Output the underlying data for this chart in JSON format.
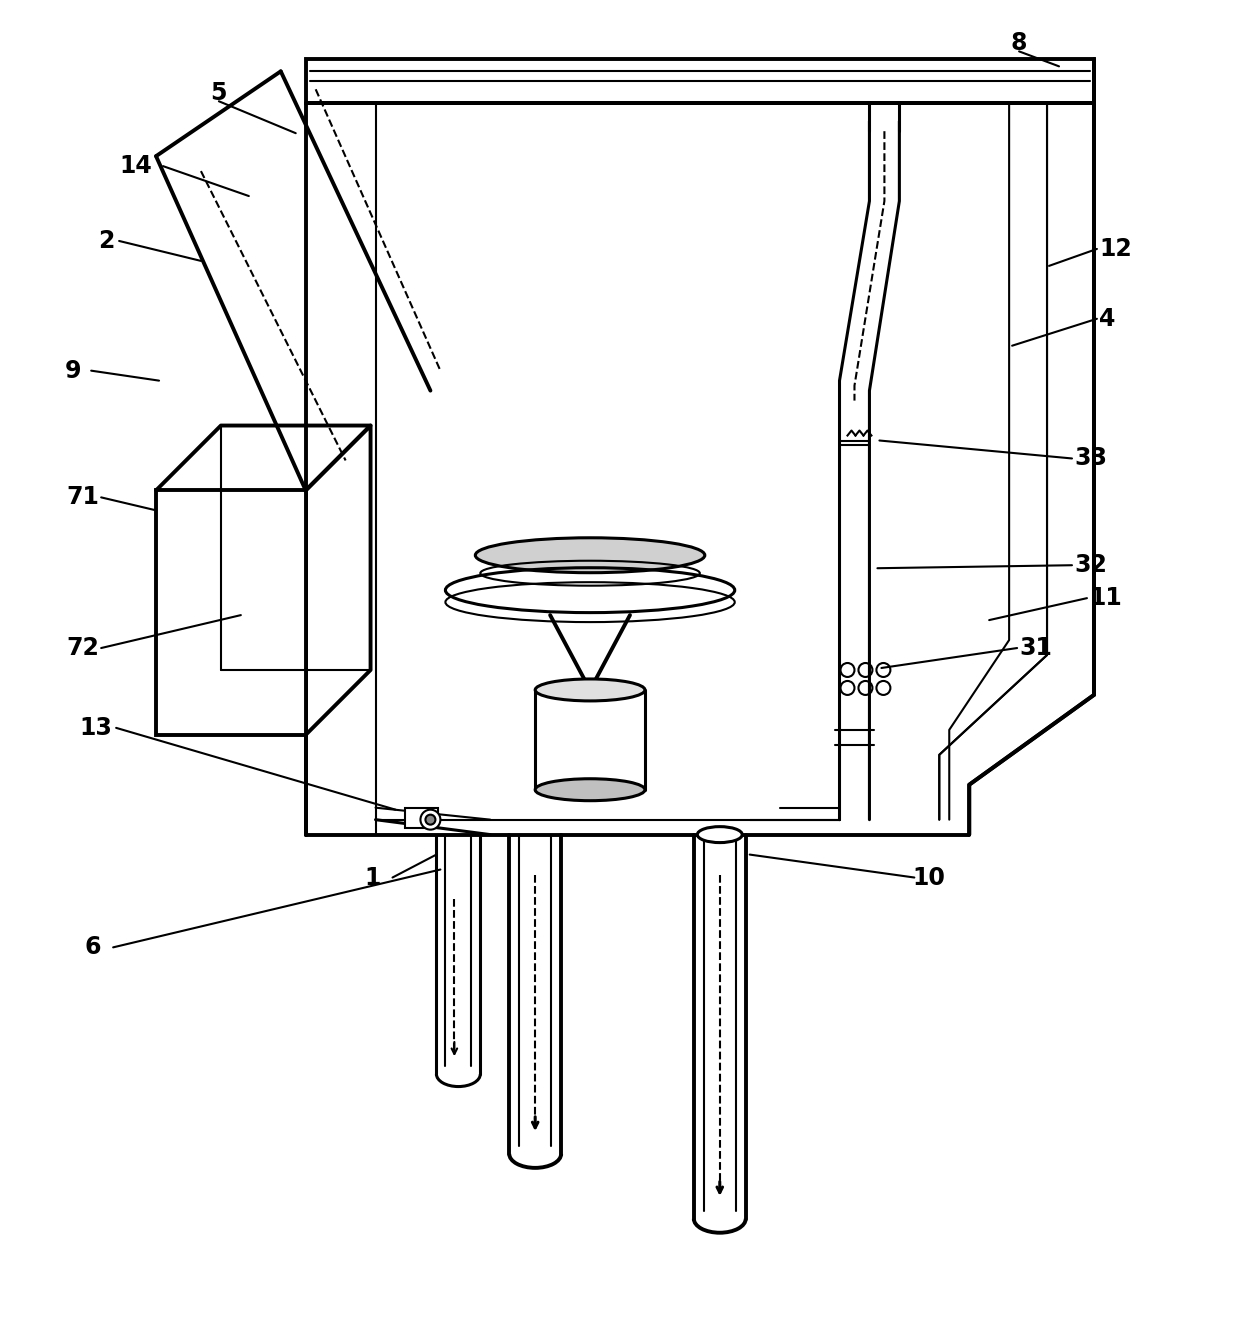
{
  "bg": "#ffffff",
  "lc": "#000000",
  "fig_w": 12.4,
  "fig_h": 13.29,
  "dpi": 100
}
